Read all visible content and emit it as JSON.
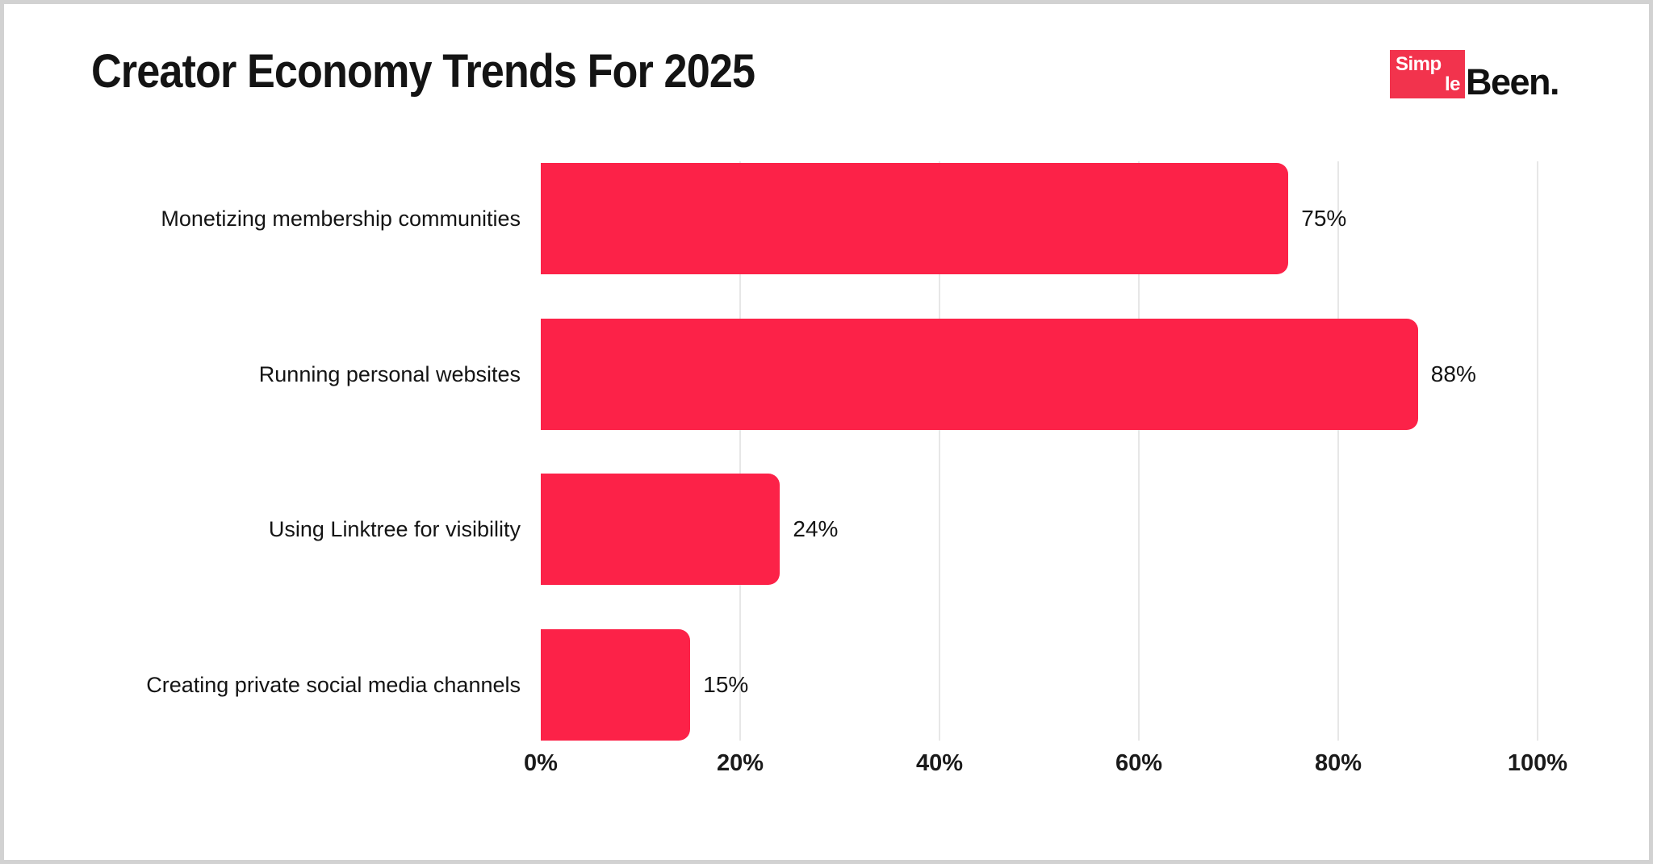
{
  "header": {
    "logo": {
      "box_line1": "Simp",
      "box_line2": "le",
      "suffix": "Been.",
      "box_color": "#f2334d",
      "box_text_color": "#ffffff",
      "suffix_color": "#111111"
    }
  },
  "chart_data": {
    "type": "bar",
    "orientation": "horizontal",
    "title": "Creator Economy Trends For 2025",
    "categories": [
      "Monetizing membership communities",
      "Running personal websites",
      "Using Linktree for visibility",
      "Creating private social media channels"
    ],
    "values": [
      75,
      88,
      24,
      15
    ],
    "value_labels": [
      "75%",
      "88%",
      "24%",
      "15%"
    ],
    "x_ticks": [
      "0%",
      "20%",
      "40%",
      "60%",
      "80%",
      "100%"
    ],
    "x_tick_values": [
      0,
      20,
      40,
      60,
      80,
      100
    ],
    "xlim": [
      0,
      100
    ],
    "bar_color": "#fc2248",
    "gridline_color": "#e7e7e7",
    "grid": "vertical",
    "legend": "none"
  }
}
